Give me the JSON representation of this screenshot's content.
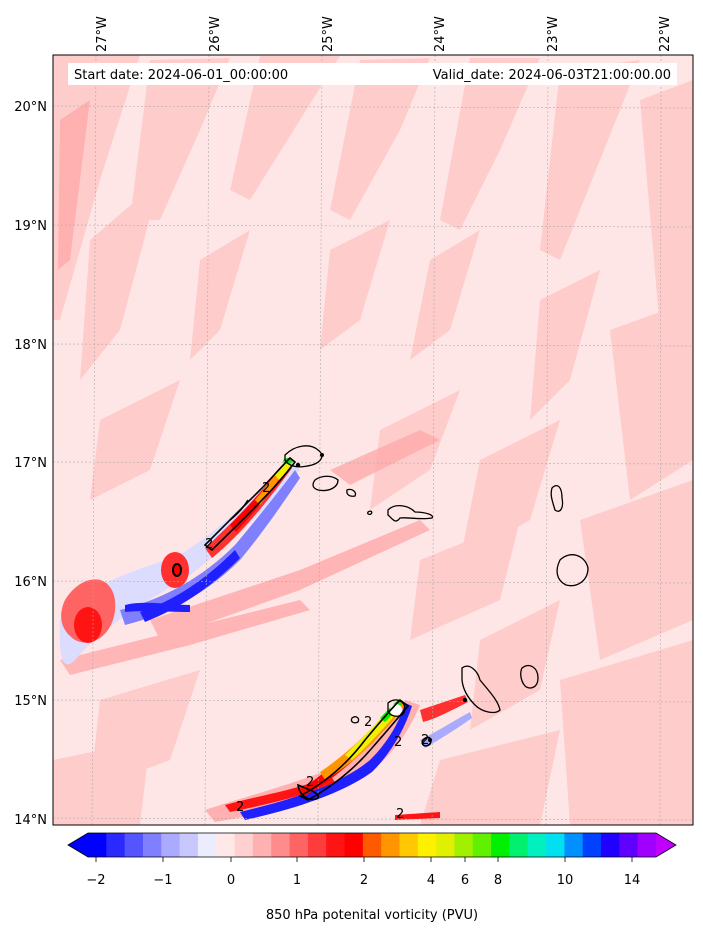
{
  "header": {
    "start_date": "Start date: 2024-06-01_00:00:00",
    "valid_date": "Valid_date: 2024-06-03T21:00:00.00"
  },
  "axes": {
    "lon_labels": [
      "27°W",
      "26°W",
      "25°W",
      "24°W",
      "23°W",
      "22°W"
    ],
    "lat_labels": [
      "20°N",
      "19°N",
      "18°N",
      "17°N",
      "16°N",
      "15°N",
      "14°N"
    ]
  },
  "colorbar": {
    "title": "850 hPa potenital vorticity (PVU)",
    "tick_labels": [
      "−2",
      "−1",
      "0",
      "1",
      "2",
      "4",
      "6",
      "8",
      "10",
      "14"
    ],
    "colors": [
      "#0000ff",
      "#2a2aff",
      "#5555ff",
      "#7f7fff",
      "#aaaaff",
      "#c8c8ff",
      "#ececff",
      "#ffe8e8",
      "#ffd0d0",
      "#ffb0b0",
      "#ff8c8c",
      "#ff6464",
      "#ff3c3c",
      "#ff1414",
      "#ff0000",
      "#ff5a00",
      "#ff9600",
      "#ffc800",
      "#fff000",
      "#e0f000",
      "#a0f000",
      "#60f000",
      "#00f000",
      "#00f070",
      "#00f0c0",
      "#00e0f0",
      "#0090ff",
      "#0040ff",
      "#2000ff",
      "#6000ff",
      "#a000ff"
    ],
    "under_color": "#0000ff",
    "over_color": "#c000ff"
  },
  "contour_labels": [
    "2",
    "2",
    "2",
    "2",
    "2",
    "2",
    "2",
    "2"
  ],
  "colors": {
    "background_field": "#ffe6e6",
    "light_pink": "#ffcccc",
    "pink": "#ffaaaa",
    "red": "#ff3030",
    "deep_red": "#ff0000",
    "light_blue": "#dcdcff",
    "blue": "#2020ff",
    "orange": "#ff9600",
    "yellow": "#f0f000",
    "green": "#00f000",
    "land_outline": "#000000",
    "grid": "#aaaaaa"
  }
}
